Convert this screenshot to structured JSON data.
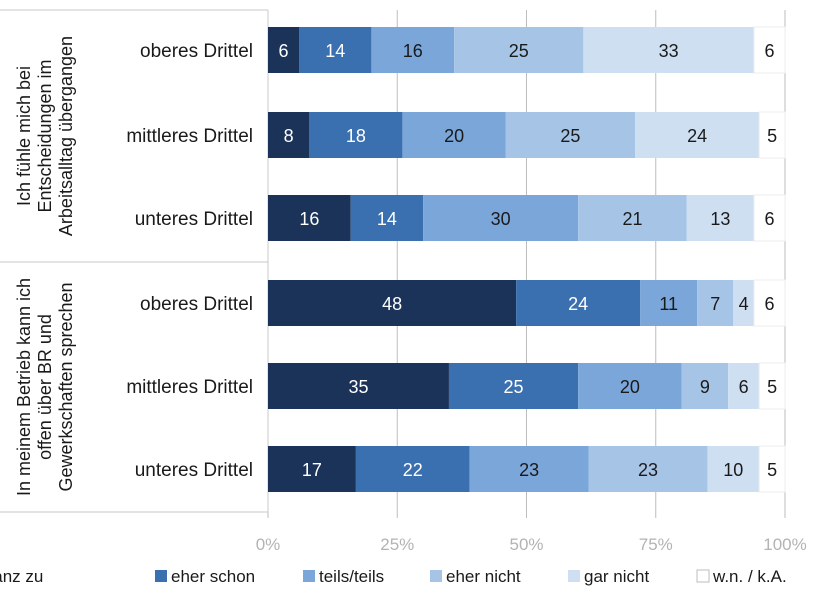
{
  "chart_data": {
    "type": "bar",
    "orientation": "horizontal",
    "stacked": true,
    "percent": true,
    "xlim": [
      0,
      100
    ],
    "ticks": [
      "0%",
      "25%",
      "50%",
      "75%",
      "100%"
    ],
    "grid": true,
    "legend_position": "bottom",
    "groups": [
      {
        "label": "Ich fühle mich bei Entscheidungen im Arbeitsalltag übergangen",
        "label_lines": [
          "Ich fühle mich bei",
          "Entscheidungen im",
          "Arbeitsalltag übergangen"
        ],
        "categories": [
          "oberes Drittel",
          "mittleres Drittel",
          "unteres Drittel"
        ]
      },
      {
        "label": "In meinem Betrieb kann ich offen über BR und Gewerkschaften sprechen",
        "label_lines": [
          "In meinem Betrieb kann ich",
          "offen über BR und",
          "Gewerkschaften sprechen"
        ],
        "categories": [
          "oberes Drittel",
          "mittleres Drittel",
          "unteres Drittel"
        ]
      }
    ],
    "series": [
      {
        "name": "stimme voll und ganz zu",
        "color": "#1b3358",
        "label_color": "#ffffff",
        "values": [
          6,
          8,
          16,
          48,
          35,
          17
        ]
      },
      {
        "name": "eher schon",
        "color": "#3a6fb0",
        "label_color": "#ffffff",
        "values": [
          14,
          18,
          14,
          24,
          25,
          22
        ]
      },
      {
        "name": "teils/teils",
        "color": "#7aa6da",
        "label_color": "#1a1a1a",
        "values": [
          16,
          20,
          30,
          11,
          20,
          23
        ]
      },
      {
        "name": "eher nicht",
        "color": "#a6c4e6",
        "label_color": "#1a1a1a",
        "values": [
          25,
          25,
          21,
          7,
          9,
          23
        ]
      },
      {
        "name": "gar nicht",
        "color": "#cedff2",
        "label_color": "#1a1a1a",
        "values": [
          33,
          24,
          13,
          4,
          6,
          10
        ]
      },
      {
        "name": "w.n. / k.A.",
        "color": "#ffffff",
        "label_color": "#1a1a1a",
        "values": [
          6,
          5,
          6,
          6,
          5,
          5
        ]
      }
    ]
  }
}
